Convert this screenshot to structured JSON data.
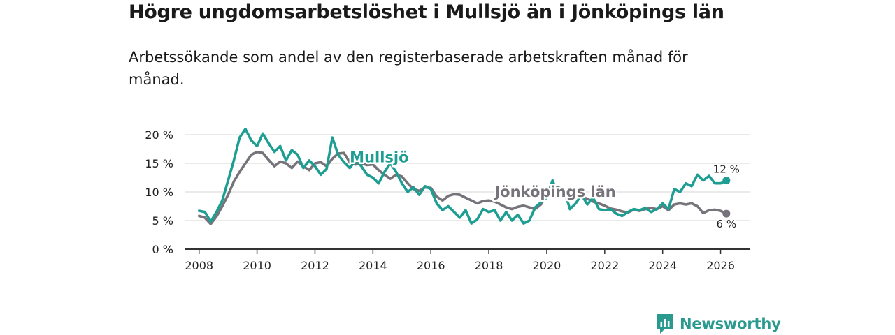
{
  "title": "Högre ungdomsarbetslöshet i Mullsjö än i Jönköpings län",
  "subtitle": "Arbetssökande som andel av den registerbaserade arbetskraften månad för månad.",
  "brand": {
    "name": "Newsworthy",
    "color": "#2a9a8f"
  },
  "colors": {
    "grid": "#dddddd",
    "axis": "#333333"
  },
  "chart_data": {
    "type": "line",
    "xlabel": "",
    "ylabel": "",
    "xlim": [
      2007.5,
      2027.0
    ],
    "ylim": [
      0,
      20
    ],
    "x_ticks": [
      2008,
      2010,
      2012,
      2014,
      2016,
      2018,
      2020,
      2022,
      2024,
      2026
    ],
    "x_tick_labels": [
      "2008",
      "2010",
      "2012",
      "2014",
      "2016",
      "2018",
      "2020",
      "2022",
      "2024",
      "2026"
    ],
    "y_ticks": [
      0,
      5,
      10,
      15,
      20
    ],
    "y_tick_labels": [
      "0 %",
      "5 %",
      "10 %",
      "15 %",
      "20 %"
    ],
    "grid": true,
    "series": [
      {
        "name": "Jönköpings län",
        "label": "Jönköpings län",
        "color": "#77737a",
        "end_label": "6 %",
        "x": [
          2008.0,
          2008.2,
          2008.4,
          2008.6,
          2008.8,
          2009.0,
          2009.2,
          2009.4,
          2009.6,
          2009.8,
          2010.0,
          2010.2,
          2010.4,
          2010.6,
          2010.8,
          2011.0,
          2011.2,
          2011.4,
          2011.6,
          2011.8,
          2012.0,
          2012.2,
          2012.4,
          2012.6,
          2012.8,
          2013.0,
          2013.2,
          2013.4,
          2013.6,
          2013.8,
          2014.0,
          2014.2,
          2014.4,
          2014.6,
          2014.8,
          2015.0,
          2015.2,
          2015.4,
          2015.6,
          2015.8,
          2016.0,
          2016.2,
          2016.4,
          2016.6,
          2016.8,
          2017.0,
          2017.2,
          2017.4,
          2017.6,
          2017.8,
          2018.0,
          2018.2,
          2018.4,
          2018.6,
          2018.8,
          2019.0,
          2019.2,
          2019.4,
          2019.6,
          2019.8,
          2020.0,
          2020.2,
          2020.4,
          2020.6,
          2020.8,
          2021.0,
          2021.2,
          2021.4,
          2021.6,
          2021.8,
          2022.0,
          2022.2,
          2022.4,
          2022.6,
          2022.8,
          2023.0,
          2023.2,
          2023.4,
          2023.6,
          2023.8,
          2024.0,
          2024.2,
          2024.4,
          2024.6,
          2024.8,
          2025.0,
          2025.2,
          2025.4,
          2025.6,
          2025.8,
          2026.0,
          2026.2
        ],
        "values": [
          5.8,
          5.5,
          4.4,
          5.7,
          7.5,
          9.5,
          11.8,
          13.5,
          15.0,
          16.5,
          17.0,
          16.8,
          15.6,
          14.5,
          15.3,
          15.0,
          14.2,
          15.3,
          14.5,
          13.8,
          15.0,
          15.2,
          14.5,
          15.8,
          16.7,
          16.8,
          15.2,
          14.8,
          15.0,
          14.7,
          14.8,
          13.8,
          13.0,
          12.3,
          13.0,
          12.7,
          11.5,
          10.5,
          10.2,
          10.8,
          10.7,
          9.2,
          8.5,
          9.3,
          9.6,
          9.5,
          9.0,
          8.5,
          8.0,
          8.4,
          8.5,
          8.3,
          7.8,
          7.3,
          7.0,
          7.4,
          7.6,
          7.3,
          7.0,
          7.8,
          9.5,
          11.0,
          10.8,
          10.2,
          9.8,
          9.6,
          9.2,
          8.8,
          8.3,
          8.0,
          7.6,
          7.1,
          6.9,
          6.6,
          6.4,
          6.9,
          6.7,
          7.0,
          7.2,
          7.0,
          7.5,
          6.8,
          7.8,
          8.0,
          7.8,
          8.0,
          7.5,
          6.3,
          6.8,
          6.9,
          6.7,
          6.2
        ]
      },
      {
        "name": "Mullsjö",
        "label": "Mullsjö",
        "color": "#1e9e92",
        "end_label": "12 %",
        "x": [
          2008.0,
          2008.2,
          2008.4,
          2008.6,
          2008.8,
          2009.0,
          2009.2,
          2009.4,
          2009.6,
          2009.8,
          2010.0,
          2010.2,
          2010.4,
          2010.6,
          2010.8,
          2011.0,
          2011.2,
          2011.4,
          2011.6,
          2011.8,
          2012.0,
          2012.2,
          2012.4,
          2012.6,
          2012.8,
          2013.0,
          2013.2,
          2013.4,
          2013.6,
          2013.8,
          2014.0,
          2014.2,
          2014.4,
          2014.6,
          2014.8,
          2015.0,
          2015.2,
          2015.4,
          2015.6,
          2015.8,
          2016.0,
          2016.2,
          2016.4,
          2016.6,
          2016.8,
          2017.0,
          2017.2,
          2017.4,
          2017.6,
          2017.8,
          2018.0,
          2018.2,
          2018.4,
          2018.6,
          2018.8,
          2019.0,
          2019.2,
          2019.4,
          2019.6,
          2019.8,
          2020.0,
          2020.2,
          2020.4,
          2020.6,
          2020.8,
          2021.0,
          2021.2,
          2021.4,
          2021.6,
          2021.8,
          2022.0,
          2022.2,
          2022.4,
          2022.6,
          2022.8,
          2023.0,
          2023.2,
          2023.4,
          2023.6,
          2023.8,
          2024.0,
          2024.2,
          2024.4,
          2024.6,
          2024.8,
          2025.0,
          2025.2,
          2025.4,
          2025.6,
          2025.8,
          2026.0,
          2026.2
        ],
        "values": [
          6.7,
          6.5,
          4.8,
          6.5,
          8.5,
          12.0,
          15.5,
          19.5,
          21.0,
          19.0,
          18.0,
          20.2,
          18.5,
          17.0,
          18.0,
          15.5,
          17.3,
          16.5,
          14.2,
          15.5,
          14.5,
          13.0,
          14.0,
          19.5,
          16.5,
          15.2,
          14.2,
          15.5,
          14.5,
          13.0,
          12.5,
          11.5,
          13.5,
          15.0,
          13.5,
          11.5,
          10.0,
          10.8,
          9.5,
          11.0,
          10.5,
          8.0,
          6.8,
          7.5,
          6.5,
          5.5,
          6.8,
          4.5,
          5.2,
          7.0,
          6.5,
          6.8,
          5.0,
          6.5,
          5.0,
          6.0,
          4.5,
          5.0,
          7.3,
          8.2,
          9.0,
          12.0,
          9.5,
          10.3,
          7.0,
          8.0,
          9.5,
          7.8,
          9.0,
          7.0,
          6.8,
          7.0,
          6.2,
          5.8,
          6.5,
          7.0,
          6.8,
          7.2,
          6.5,
          7.0,
          8.0,
          7.0,
          10.5,
          10.0,
          11.5,
          11.0,
          13.0,
          12.0,
          12.8,
          11.5,
          11.5,
          12.0
        ]
      }
    ]
  }
}
